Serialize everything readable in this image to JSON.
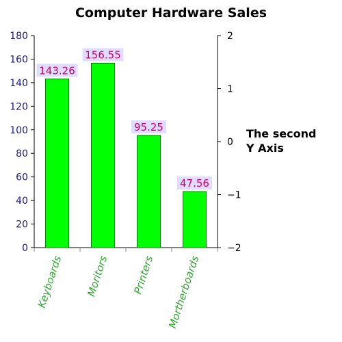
{
  "chart_data": {
    "type": "bar",
    "title": "Computer Hardware Sales",
    "categories": [
      "Keyboards",
      "Moritors",
      "Printers",
      "Mortherboards"
    ],
    "values": [
      143.26,
      156.55,
      95.25,
      47.56
    ],
    "data_labels": [
      "143.26",
      "156.55",
      "95.25",
      "47.56"
    ],
    "ylim": [
      0,
      180
    ],
    "y_ticks": [
      "0",
      "20",
      "40",
      "60",
      "80",
      "100",
      "120",
      "140",
      "160",
      "180"
    ],
    "y2lim": [
      -2,
      2
    ],
    "y2_ticks": [
      "−2",
      "−1",
      "0",
      "1",
      "2"
    ],
    "y2label_lines": [
      "The second",
      "Y Axis"
    ],
    "grid": false,
    "colors": {
      "bar_fill": "#00ff00",
      "bar_stroke": "#008000",
      "data_label_text": "#cc0066",
      "data_label_bg": "#e0dcff",
      "y_tick_text": "#1a1a8c",
      "x_tick_text": "#2eaa2e",
      "y2_tick_text": "#000000"
    }
  }
}
